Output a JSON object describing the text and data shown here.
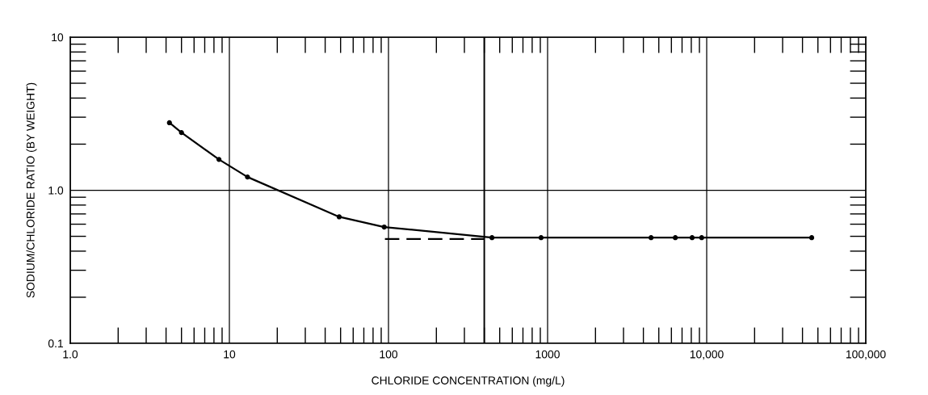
{
  "chart_data": {
    "type": "line",
    "xlabel": "CHLORIDE CONCENTRATION (mg/L)",
    "ylabel": "SODIUM/CHLORIDE RATIO (BY WEIGHT)",
    "log": "xy",
    "grid": true,
    "xlim": [
      1,
      100000
    ],
    "ylim": [
      0.1,
      10
    ],
    "xticks": [
      {
        "value": 1,
        "label": "1.0"
      },
      10,
      100,
      1000,
      {
        "value": 10000,
        "label": "10,000"
      },
      {
        "value": 100000,
        "label": "100,000"
      }
    ],
    "yticks": [
      0.1,
      {
        "value": 1,
        "label": "1.0"
      },
      10
    ],
    "series": [
      {
        "color": "#000000",
        "marker": "circle",
        "line_style": "solid",
        "x": [
          4.2,
          5.0,
          8.6,
          13,
          49,
          94,
          447,
          910,
          4470,
          6350,
          8100,
          9300,
          45700
        ],
        "values": [
          2.76,
          2.38,
          1.59,
          1.22,
          0.67,
          0.575,
          0.49,
          0.49,
          0.49,
          0.49,
          0.49,
          0.49,
          0.49
        ]
      },
      {
        "color": "#000000",
        "marker": "none",
        "line_style": "dashed",
        "x": [
          95,
          400
        ],
        "values": [
          0.48,
          0.48
        ]
      }
    ],
    "ref_lines": [
      {
        "axis": "x",
        "value": 400,
        "color": "#000000"
      }
    ]
  }
}
